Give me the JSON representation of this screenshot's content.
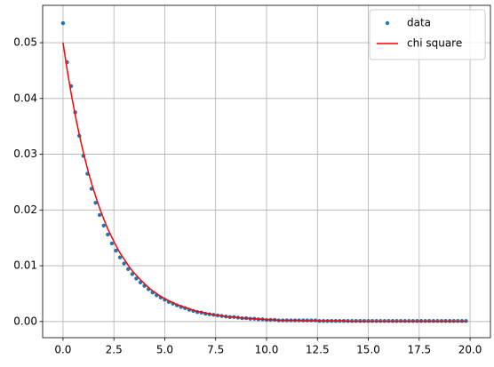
{
  "chart_data": {
    "type": "line",
    "x": [
      0,
      0.2,
      0.4,
      0.6,
      0.8,
      1,
      1.2,
      1.4,
      1.6,
      1.8,
      2,
      2.2,
      2.4,
      2.6,
      2.8,
      3,
      3.2,
      3.4,
      3.6,
      3.8,
      4,
      4.2,
      4.4,
      4.6,
      4.8,
      5,
      5.2,
      5.4,
      5.6,
      5.8,
      6,
      6.2,
      6.4,
      6.6,
      6.8,
      7,
      7.2,
      7.4,
      7.6,
      7.8,
      8,
      8.2,
      8.4,
      8.6,
      8.8,
      9,
      9.2,
      9.4,
      9.6,
      9.8,
      10,
      10.2,
      10.4,
      10.6,
      10.8,
      11,
      11.2,
      11.4,
      11.6,
      11.8,
      12,
      12.2,
      12.4,
      12.6,
      12.8,
      13,
      13.2,
      13.4,
      13.6,
      13.8,
      14,
      14.2,
      14.4,
      14.6,
      14.8,
      15,
      15.2,
      15.4,
      15.6,
      15.8,
      16,
      16.2,
      16.4,
      16.6,
      16.8,
      17,
      17.2,
      17.4,
      17.6,
      17.8,
      18,
      18.2,
      18.4,
      18.6,
      18.8,
      19,
      19.2,
      19.4,
      19.6,
      19.8
    ],
    "series": [
      {
        "name": "data",
        "type": "scatter",
        "color": "#1f77b4",
        "values": [
          0.0535,
          0.0465,
          0.0422,
          0.0375,
          0.0333,
          0.0297,
          0.0265,
          0.0238,
          0.0213,
          0.0191,
          0.0172,
          0.0156,
          0.014,
          0.0127,
          0.0115,
          0.0104,
          0.0094,
          0.0085,
          0.0077,
          0.007,
          0.0064,
          0.0058,
          0.0052,
          0.0047,
          0.0043,
          0.0039,
          0.0035,
          0.0032,
          0.0029,
          0.0026,
          0.0024,
          0.0021,
          0.0019,
          0.0017,
          0.0016,
          0.0014,
          0.0013,
          0.0012,
          0.0011,
          0.001,
          0.0009,
          0.0008,
          0.0008,
          0.0007,
          0.0006,
          0.0006,
          0.0005,
          0.0005,
          0.0004,
          0.0004,
          0.0003,
          0.0003,
          0.0003,
          0.0002,
          0.0002,
          0.0002,
          0.0002,
          0.0002,
          0.0002,
          0.0002,
          0.0002,
          0.0002,
          0.0002,
          0.0001,
          0.0001,
          0.0001,
          0.0001,
          0.0001,
          0.0001,
          0.0001,
          0.0001,
          0.0001,
          0.0001,
          0.0001,
          0.0001,
          0.0001,
          0.0001,
          0.0001,
          0.0001,
          0.0001,
          0.0001,
          0.0001,
          0.0001,
          0.0001,
          0.0001,
          0.0001,
          0.0001,
          0.0001,
          0.0001,
          0.0001,
          0.0001,
          0.0001,
          0.0001,
          0.0001,
          0.0001,
          0.0001,
          0.0001,
          0.0001,
          0.0001,
          0.0001
        ]
      },
      {
        "name": "chi square",
        "type": "line",
        "color": "#ff0000",
        "values": [
          0.05,
          0.0452,
          0.0409,
          0.037,
          0.0335,
          0.0303,
          0.0274,
          0.0248,
          0.0225,
          0.0203,
          0.0184,
          0.0166,
          0.0151,
          0.0136,
          0.0123,
          0.0112,
          0.0101,
          0.0091,
          0.0083,
          0.0075,
          0.0068,
          0.0061,
          0.0055,
          0.005,
          0.0045,
          0.0041,
          0.0037,
          0.0034,
          0.003,
          0.0028,
          0.0025,
          0.0023,
          0.002,
          0.0018,
          0.0017,
          0.0015,
          0.0014,
          0.0012,
          0.0011,
          0.001,
          0.0009,
          0.0008,
          0.0008,
          0.0007,
          0.0006,
          0.0006,
          0.0005,
          0.0005,
          0.0004,
          0.0004,
          0.0003,
          0.0003,
          0.0003,
          0.0002,
          0.0002,
          0.0002,
          0.0002,
          0.0002,
          0.0002,
          0.0001,
          0.0001,
          0.0001,
          0.0001,
          0.0001,
          0.0001,
          0.0001,
          0.0001,
          0.0001,
          0.0001,
          0.0001,
          0,
          0,
          0,
          0,
          0,
          0,
          0,
          0,
          0,
          0,
          0,
          0,
          0,
          0,
          0,
          0,
          0,
          0,
          0,
          0,
          0,
          0,
          0,
          0,
          0,
          0,
          0,
          0,
          0,
          0
        ]
      }
    ],
    "xlim": [
      -1.0,
      21.0
    ],
    "ylim": [
      -0.0029,
      0.0567
    ],
    "xticks": [
      {
        "value": 0,
        "label": "0.0"
      },
      2.5,
      {
        "value": 5,
        "label": "5.0"
      },
      7.5,
      {
        "value": 10,
        "label": "10.0"
      },
      12.5,
      {
        "value": 15,
        "label": "15.0"
      },
      17.5,
      {
        "value": 20,
        "label": "20.0"
      }
    ],
    "yticks": [
      {
        "value": 0,
        "label": "0.00"
      },
      {
        "value": 0.01,
        "label": "0.01"
      },
      {
        "value": 0.02,
        "label": "0.02"
      },
      {
        "value": 0.03,
        "label": "0.03"
      },
      {
        "value": 0.04,
        "label": "0.04"
      },
      {
        "value": 0.05,
        "label": "0.05"
      }
    ],
    "grid": true,
    "legend": "upper right"
  }
}
